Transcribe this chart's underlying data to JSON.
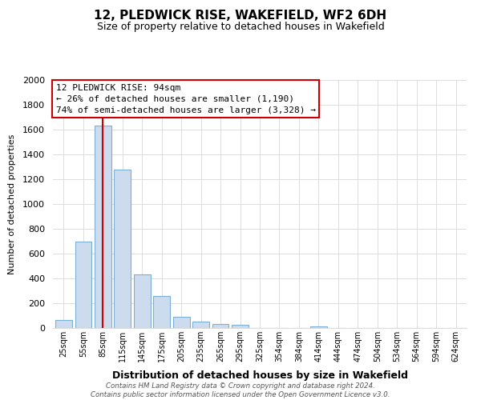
{
  "title": "12, PLEDWICK RISE, WAKEFIELD, WF2 6DH",
  "subtitle": "Size of property relative to detached houses in Wakefield",
  "xlabel": "Distribution of detached houses by size in Wakefield",
  "ylabel": "Number of detached properties",
  "bar_labels": [
    "25sqm",
    "55sqm",
    "85sqm",
    "115sqm",
    "145sqm",
    "175sqm",
    "205sqm",
    "235sqm",
    "265sqm",
    "295sqm",
    "325sqm",
    "354sqm",
    "384sqm",
    "414sqm",
    "444sqm",
    "474sqm",
    "504sqm",
    "534sqm",
    "564sqm",
    "594sqm",
    "624sqm"
  ],
  "bar_heights": [
    65,
    700,
    1630,
    1280,
    435,
    255,
    90,
    50,
    30,
    25,
    0,
    0,
    0,
    15,
    0,
    0,
    0,
    0,
    0,
    0,
    0
  ],
  "bar_color": "#ccdcee",
  "bar_edge_color": "#7bafd4",
  "vline_x_index": 2,
  "vline_color": "#cc0000",
  "annotation_title": "12 PLEDWICK RISE: 94sqm",
  "annotation_line1": "← 26% of detached houses are smaller (1,190)",
  "annotation_line2": "74% of semi-detached houses are larger (3,328) →",
  "annotation_box_color": "#ffffff",
  "annotation_box_edge": "#cc0000",
  "ylim": [
    0,
    2000
  ],
  "yticks": [
    0,
    200,
    400,
    600,
    800,
    1000,
    1200,
    1400,
    1600,
    1800,
    2000
  ],
  "footer_line1": "Contains HM Land Registry data © Crown copyright and database right 2024.",
  "footer_line2": "Contains public sector information licensed under the Open Government Licence v3.0.",
  "background_color": "#ffffff",
  "grid_color": "#dddddd"
}
